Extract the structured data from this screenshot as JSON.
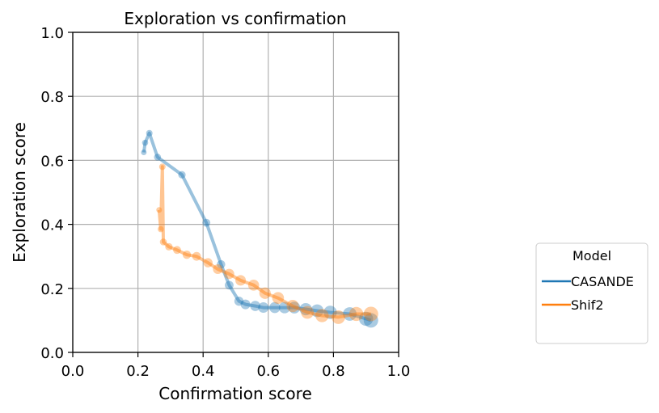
{
  "chart_data": {
    "type": "scatter",
    "title": "Exploration vs confirmation",
    "xlabel": "Confirmation score",
    "ylabel": "Exploration score",
    "xlim": [
      0.0,
      1.0
    ],
    "ylim": [
      0.0,
      1.0
    ],
    "xticks": [
      "0.0",
      "0.2",
      "0.4",
      "0.6",
      "0.8",
      "1.0"
    ],
    "yticks": [
      "0.0",
      "0.2",
      "0.4",
      "0.6",
      "0.8",
      "1.0"
    ],
    "grid": true,
    "legend": {
      "title": "Model",
      "placement": "right",
      "entries": [
        "CASANDE",
        "Shif2"
      ]
    },
    "series": [
      {
        "name": "CASANDE",
        "color": "#1f77b4",
        "x": [
          0.218,
          0.222,
          0.235,
          0.26,
          0.335,
          0.41,
          0.455,
          0.48,
          0.51,
          0.53,
          0.56,
          0.585,
          0.62,
          0.65,
          0.68,
          0.715,
          0.75,
          0.79,
          0.85,
          0.9,
          0.915
        ],
        "y": [
          0.625,
          0.655,
          0.685,
          0.61,
          0.555,
          0.405,
          0.275,
          0.21,
          0.16,
          0.15,
          0.145,
          0.14,
          0.14,
          0.14,
          0.14,
          0.135,
          0.13,
          0.125,
          0.12,
          0.105,
          0.1
        ]
      },
      {
        "name": "Shif2",
        "color": "#ff7f0e",
        "x": [
          0.265,
          0.27,
          0.275,
          0.278,
          0.295,
          0.32,
          0.35,
          0.38,
          0.415,
          0.445,
          0.48,
          0.515,
          0.555,
          0.59,
          0.63,
          0.675,
          0.72,
          0.765,
          0.815,
          0.87,
          0.915
        ],
        "y": [
          0.445,
          0.385,
          0.58,
          0.345,
          0.33,
          0.32,
          0.305,
          0.3,
          0.28,
          0.26,
          0.245,
          0.225,
          0.21,
          0.185,
          0.17,
          0.145,
          0.125,
          0.115,
          0.11,
          0.12,
          0.12
        ]
      }
    ]
  }
}
